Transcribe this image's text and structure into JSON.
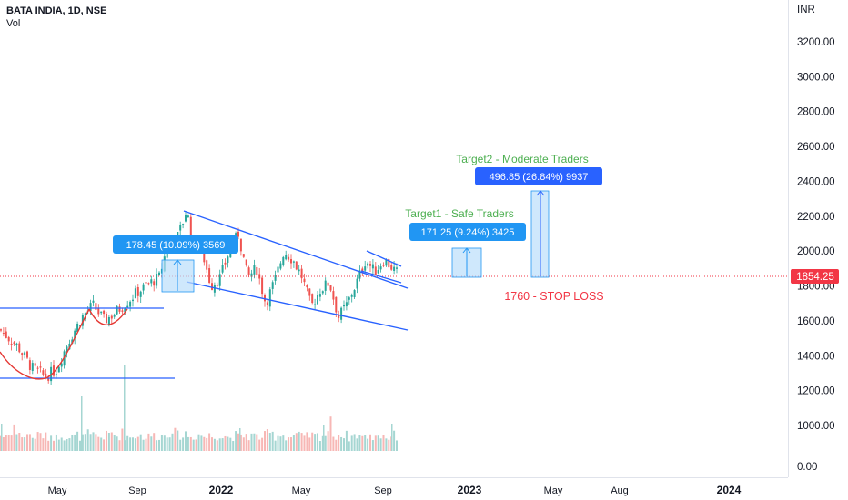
{
  "header": {
    "symbol": "BATA INDIA, 1D, NSE",
    "sub": "Vol"
  },
  "price_axis": {
    "currency": "INR",
    "labels": [
      "3200.00",
      "3000.00",
      "2800.00",
      "2600.00",
      "2400.00",
      "2200.00",
      "2000.00",
      "1800.00",
      "1600.00",
      "1400.00",
      "1200.00",
      "1000.00",
      "0.00"
    ],
    "current_price": "1854.25",
    "current_color": "#f23645"
  },
  "time_axis": {
    "labels": [
      {
        "text": "May",
        "major": false
      },
      {
        "text": "Sep",
        "major": false
      },
      {
        "text": "2022",
        "major": true
      },
      {
        "text": "May",
        "major": false
      },
      {
        "text": "Sep",
        "major": false
      },
      {
        "text": "2023",
        "major": true
      },
      {
        "text": "May",
        "major": false
      },
      {
        "text": "Aug",
        "major": false
      },
      {
        "text": "2024",
        "major": true
      }
    ]
  },
  "annotations": {
    "measure1": "178.45 (10.09%) 3569",
    "target1_title": "Target1 - Safe Traders",
    "target1_box": "171.25 (9.24%) 3425",
    "target2_title": "Target2 - Moderate Traders",
    "target2_box": "496.85 (26.84%) 9937",
    "stoploss": "1760 - STOP LOSS"
  },
  "colors": {
    "up": "#26a69a",
    "down": "#ef5350",
    "trendline": "#2962ff",
    "curve": "#e53935",
    "measure_fill": "#bbdefb",
    "label_bg": "#2196f3",
    "target2_label_bg": "#2962ff",
    "target_text": "#4caf50",
    "stoploss_text": "#f23645"
  },
  "chart_data": {
    "type": "candlestick",
    "title": "BATA INDIA, 1D, NSE",
    "currency": "INR",
    "current_price": 1854.25,
    "ylim": [
      0,
      3300
    ],
    "grid": false,
    "path_points": [
      [
        0,
        1550
      ],
      [
        20,
        1450
      ],
      [
        35,
        1330
      ],
      [
        50,
        1280
      ],
      [
        62,
        1320
      ],
      [
        75,
        1480
      ],
      [
        90,
        1620
      ],
      [
        102,
        1690
      ],
      [
        115,
        1600
      ],
      [
        125,
        1640
      ],
      [
        138,
        1700
      ],
      [
        150,
        1760
      ],
      [
        163,
        1810
      ],
      [
        175,
        1850
      ],
      [
        185,
        2050
      ],
      [
        195,
        2080
      ],
      [
        200,
        2150
      ],
      [
        205,
        2240
      ],
      [
        212,
        2050
      ],
      [
        222,
        2000
      ],
      [
        232,
        1800
      ],
      [
        242,
        1850
      ],
      [
        252,
        2000
      ],
      [
        262,
        2100
      ],
      [
        272,
        1850
      ],
      [
        282,
        1900
      ],
      [
        292,
        1700
      ],
      [
        302,
        1830
      ],
      [
        312,
        2000
      ],
      [
        322,
        1950
      ],
      [
        332,
        1850
      ],
      [
        342,
        1680
      ],
      [
        352,
        1780
      ],
      [
        362,
        1820
      ],
      [
        372,
        1620
      ],
      [
        382,
        1700
      ],
      [
        392,
        1820
      ],
      [
        402,
        1950
      ],
      [
        412,
        1880
      ],
      [
        422,
        1950
      ],
      [
        432,
        1900
      ],
      [
        437,
        1870
      ]
    ],
    "volume_profile": [
      0.5,
      0.45,
      0.5,
      0.55,
      0.8,
      1.0,
      0.6,
      0.5,
      0.55,
      0.45,
      0.6,
      0.5,
      0.4,
      0.45,
      0.5,
      0.55,
      0.5,
      0.45,
      0.4,
      0.5,
      0.45,
      0.4,
      0.5,
      0.6,
      0.45,
      0.5,
      0.4,
      0.4,
      0.45,
      0.5,
      0.45,
      0.4,
      0.5,
      0.55,
      0.45,
      0.5,
      0.5,
      0.45,
      0.4,
      0.45,
      0.5,
      0.55,
      0.6,
      0.55,
      0.45,
      0.5,
      0.6,
      0.5,
      0.45,
      0.4,
      0.45,
      0.5,
      0.55,
      0.5,
      0.45,
      0.4,
      0.45,
      0.5,
      0.5,
      0.45
    ]
  }
}
